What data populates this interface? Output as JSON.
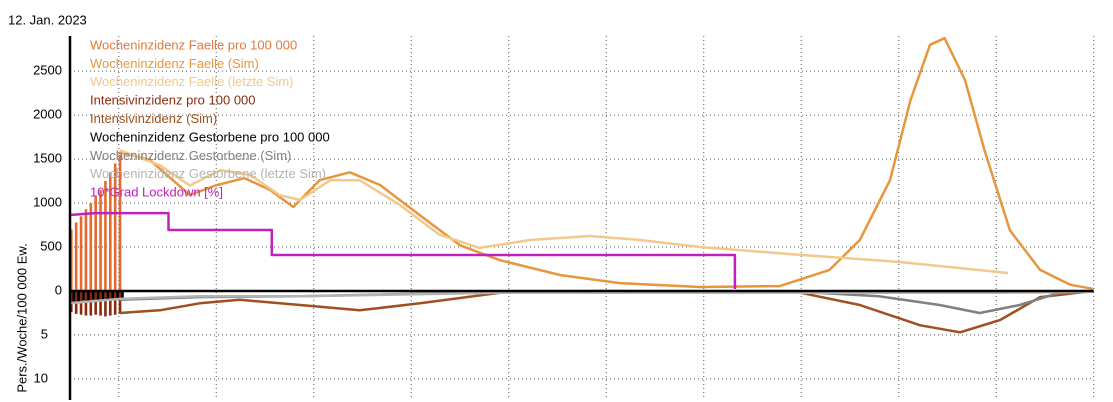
{
  "chart_data": {
    "type": "line",
    "title": "12. Jan. 2023",
    "ylabel": "Pers./Woche/100 000 Ew.",
    "xlim": [
      0,
      105
    ],
    "xgrid": [
      5,
      15,
      25,
      35,
      45,
      55,
      65,
      75,
      85,
      95,
      105
    ],
    "ylim": [
      -1240,
      2900
    ],
    "yticks": [
      0,
      500,
      1000,
      1500,
      2000,
      2500
    ],
    "y2lim": [
      12.4,
      -29
    ],
    "y2ticks": [
      5,
      10
    ],
    "grid": true,
    "legend": "upper left",
    "series": [
      {
        "name": "Wocheninzidenz Faelle pro 100 000",
        "type": "bar",
        "color": "#e8692e",
        "legend_color": "#e07a3a",
        "x": [
          0,
          0.5,
          1,
          1.5,
          2,
          2.5,
          3,
          3.5,
          4,
          4.5,
          5
        ],
        "values": [
          700,
          780,
          850,
          930,
          1000,
          1080,
          1150,
          1250,
          1350,
          1450,
          1550
        ]
      },
      {
        "name": "Wocheninzidenz Faelle (Sim)",
        "type": "line",
        "color": "#e8963c",
        "x": [
          5.1,
          8.2,
          12.3,
          14.9,
          17.9,
          20.5,
          22.9,
          25.6,
          28.7,
          31.8,
          35.9,
          40,
          44.1,
          50.3,
          56.4,
          64.6,
          72.8,
          77.9,
          81,
          84.1,
          86.2,
          88.2,
          89.7,
          91.8,
          93.8,
          96.4,
          99.5,
          102.6,
          104.9
        ],
        "values": [
          1580,
          1490,
          1090,
          1200,
          1284,
          1150,
          955,
          1260,
          1350,
          1205,
          860,
          520,
          350,
          180,
          90,
          45,
          55,
          240,
          580,
          1260,
          2170,
          2800,
          2875,
          2400,
          1600,
          690,
          240,
          70,
          25
        ]
      },
      {
        "name": "Wocheninzidenz Faelle (letzte Sim)",
        "type": "line",
        "color": "#f2c98c",
        "x": [
          5.1,
          9.2,
          12.3,
          15.4,
          18.5,
          21.5,
          23.6,
          26.7,
          29.7,
          33.8,
          37.9,
          42,
          47.2,
          53.3,
          58.5,
          64.6,
          74.9,
          85.1,
          96.2
        ],
        "values": [
          1600,
          1430,
          1200,
          1375,
          1320,
          1090,
          1035,
          1260,
          1260,
          980,
          640,
          490,
          580,
          625,
          580,
          500,
          410,
          330,
          205
        ]
      },
      {
        "name": "Intensivinzidenz pro 100 000",
        "type": "bar",
        "axis": "y2",
        "color": "#8b2a0e",
        "x": [
          0,
          0.5,
          1,
          1.5,
          2,
          2.5,
          3,
          3.5,
          4,
          4.5,
          5
        ],
        "values": [
          2.4,
          2.6,
          2.7,
          2.8,
          2.8,
          2.7,
          2.8,
          2.9,
          2.8,
          2.7,
          2.6
        ]
      },
      {
        "name": "Intensivinzidenz (Sim)",
        "type": "line",
        "axis": "y2",
        "color": "#a0501e",
        "x": [
          5.1,
          9.2,
          13.3,
          17.4,
          23.6,
          29.7,
          35.9,
          44.1,
          54.4,
          74.9,
          81,
          87.2,
          91.3,
          95.4,
          99.5,
          104.9
        ],
        "values": [
          2.5,
          2.2,
          1.4,
          1.0,
          1.6,
          2.2,
          1.4,
          0.2,
          0,
          0.2,
          1.6,
          3.9,
          4.7,
          3.3,
          0.7,
          0
        ]
      },
      {
        "name": "Wocheninzidenz Gestorbene pro 100 000",
        "type": "bar",
        "axis": "y2",
        "color": "#000000",
        "x": [
          0.25,
          0.75,
          1.25,
          1.75,
          2.25,
          2.75,
          3.25,
          3.75,
          4.25,
          4.75,
          5.25
        ],
        "values": [
          1.2,
          1.2,
          1.1,
          1.1,
          1.0,
          1.0,
          1.0,
          1.0,
          1.0,
          0.9,
          0.9
        ]
      },
      {
        "name": "Wocheninzidenz Gestorbene (Sim)",
        "type": "line",
        "axis": "y2",
        "color": "#808080",
        "x": [
          5.1,
          13.3,
          23.6,
          44.1,
          74.9,
          83,
          89.2,
          93.3,
          97.4,
          101.5,
          104.9
        ],
        "values": [
          1.0,
          0.7,
          0.6,
          0.1,
          0.1,
          0.6,
          1.6,
          2.5,
          1.6,
          0.2,
          0
        ]
      },
      {
        "name": "Wocheninzidenz Gestorbene (letzte Sim)",
        "type": "line",
        "axis": "y2",
        "color": "#b4b4b4",
        "x": [
          0,
          5.1,
          13.3,
          23.6,
          44.1,
          95.4,
          104.9
        ],
        "values": [
          1.4,
          0.9,
          0.6,
          0.6,
          0.2,
          0.2,
          0.1
        ]
      },
      {
        "name": "10*Grad Lockdown [%]",
        "type": "line",
        "color": "#c020c0",
        "x": [
          0,
          2.6,
          10.1,
          10.1,
          20.7,
          20.7,
          68.2,
          68.2
        ],
        "values": [
          864,
          886,
          886,
          693,
          693,
          409,
          409,
          23
        ]
      }
    ]
  }
}
